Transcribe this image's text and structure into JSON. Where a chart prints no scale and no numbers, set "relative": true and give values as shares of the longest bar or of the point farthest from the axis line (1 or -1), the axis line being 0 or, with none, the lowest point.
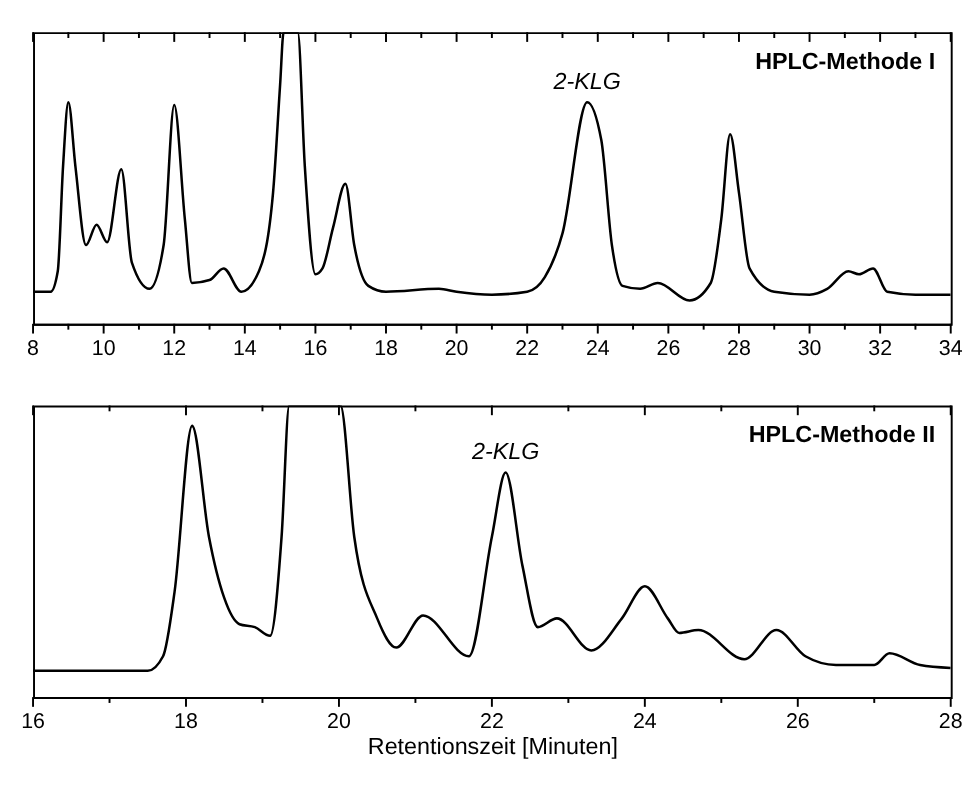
{
  "chart_data": [
    {
      "type": "line",
      "relative": true,
      "xlim": [
        8,
        34
      ],
      "xticks": [
        8,
        {
          "value": 9,
          "label": null
        },
        10,
        {
          "value": 11,
          "label": null
        },
        12,
        {
          "value": 13,
          "label": null
        },
        14,
        {
          "value": 15,
          "label": null
        },
        16,
        {
          "value": 17,
          "label": null
        },
        18,
        {
          "value": 19,
          "label": null
        },
        20,
        {
          "value": 21,
          "label": null
        },
        22,
        {
          "value": 23,
          "label": null
        },
        24,
        {
          "value": 25,
          "label": null
        },
        26,
        {
          "value": 27,
          "label": null
        },
        28,
        {
          "value": 29,
          "label": null
        },
        30,
        {
          "value": 31,
          "label": null
        },
        32,
        {
          "value": 33,
          "label": null
        },
        34
      ],
      "grid": false,
      "series": [
        {
          "color": "#000000",
          "x": [
            8.0,
            8.5,
            8.7,
            8.85,
            9.0,
            9.2,
            9.5,
            9.8,
            10.1,
            10.5,
            10.8,
            11.3,
            11.7,
            12.0,
            12.3,
            12.5,
            13.0,
            13.4,
            13.9,
            14.4,
            14.8,
            15.0,
            15.1,
            15.5,
            15.7,
            16.0,
            16.2,
            16.5,
            16.85,
            17.1,
            17.5,
            18.0,
            19.5,
            20.0,
            21.0,
            22.0,
            22.5,
            23.0,
            23.7,
            24.1,
            24.4,
            24.7,
            25.2,
            25.7,
            26.6,
            27.2,
            27.5,
            27.75,
            28.0,
            28.3,
            29.0,
            30.0,
            30.5,
            31.1,
            31.4,
            31.8,
            32.2,
            33.0,
            34.0
          ],
          "values": [
            0.11,
            0.11,
            0.18,
            0.54,
            0.76,
            0.54,
            0.27,
            0.34,
            0.28,
            0.53,
            0.21,
            0.12,
            0.27,
            0.75,
            0.36,
            0.14,
            0.15,
            0.19,
            0.11,
            0.18,
            0.45,
            0.82,
            1.0,
            1.0,
            0.54,
            0.17,
            0.19,
            0.33,
            0.48,
            0.27,
            0.13,
            0.11,
            0.12,
            0.11,
            0.1,
            0.11,
            0.16,
            0.31,
            0.76,
            0.63,
            0.27,
            0.13,
            0.12,
            0.14,
            0.08,
            0.14,
            0.36,
            0.65,
            0.45,
            0.19,
            0.11,
            0.1,
            0.12,
            0.18,
            0.17,
            0.19,
            0.11,
            0.1,
            0.1
          ]
        }
      ],
      "annotations": [
        {
          "text": "2-KLG",
          "x": 23.7,
          "y": 0.76
        },
        "HPLC-Methode I"
      ]
    },
    {
      "type": "line",
      "relative": true,
      "xlim": [
        16,
        28
      ],
      "xticks": [
        16,
        {
          "value": 17,
          "label": null
        },
        18,
        {
          "value": 19,
          "label": null
        },
        20,
        {
          "value": 21,
          "label": null
        },
        22,
        {
          "value": 23,
          "label": null
        },
        24,
        {
          "value": 25,
          "label": null
        },
        26,
        {
          "value": 27,
          "label": null
        },
        28
      ],
      "xlabel": "Retentionszeit [Minuten]",
      "grid": false,
      "series": [
        {
          "color": "#000000",
          "x": [
            16.0,
            17.5,
            17.7,
            17.85,
            18.08,
            18.3,
            18.5,
            18.7,
            18.9,
            19.1,
            19.25,
            19.35,
            20.02,
            20.2,
            20.5,
            20.75,
            21.1,
            21.7,
            22.0,
            22.18,
            22.4,
            22.6,
            22.85,
            23.3,
            23.7,
            24.0,
            24.3,
            24.45,
            24.7,
            25.3,
            25.72,
            26.1,
            26.5,
            27.0,
            27.2,
            27.6,
            28.0
          ],
          "values": [
            0.09,
            0.09,
            0.14,
            0.36,
            0.93,
            0.55,
            0.34,
            0.25,
            0.24,
            0.21,
            0.55,
            1.0,
            1.0,
            0.55,
            0.27,
            0.17,
            0.28,
            0.14,
            0.55,
            0.77,
            0.45,
            0.24,
            0.27,
            0.16,
            0.27,
            0.38,
            0.27,
            0.22,
            0.23,
            0.13,
            0.23,
            0.14,
            0.11,
            0.11,
            0.15,
            0.11,
            0.1
          ]
        }
      ],
      "annotations": [
        {
          "text": "2-KLG",
          "x": 22.18,
          "y": 0.77
        },
        "HPLC-Methode II"
      ]
    }
  ]
}
